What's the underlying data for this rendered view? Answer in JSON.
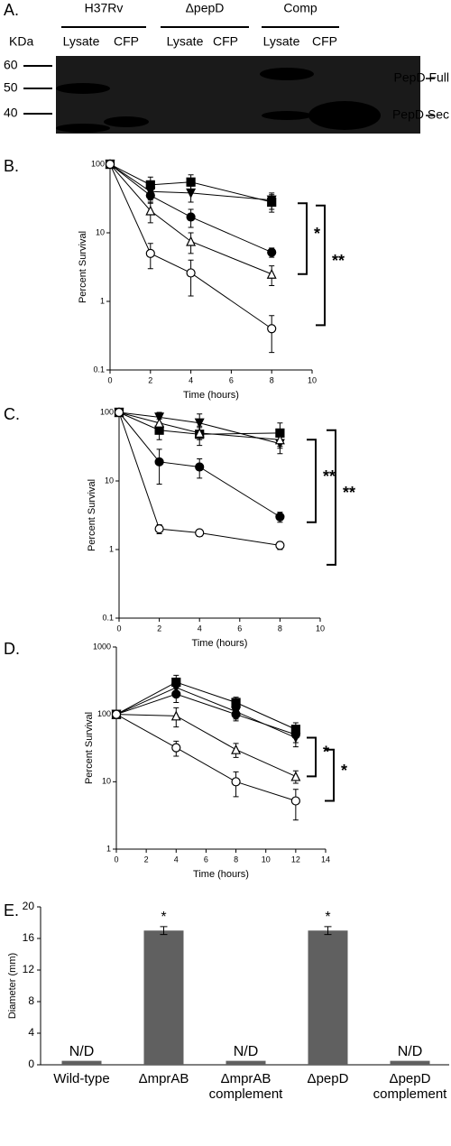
{
  "blot": {
    "panel_label": "A.",
    "unit": "KDa",
    "markers": [
      60,
      50,
      40
    ],
    "strains": [
      "H37Rv",
      "ΔpepD",
      "Comp"
    ],
    "lanes": [
      "Lysate",
      "CFP",
      "Lysate",
      "CFP",
      "Lysate",
      "CFP"
    ],
    "bands": [
      "PepD Full",
      "PepD Sec"
    ]
  },
  "chart_data": [
    {
      "type": "line",
      "panel_label": "B.",
      "y_label": "Percent Survival",
      "x_label": "Time (hours)",
      "x": [
        0,
        2,
        4,
        8
      ],
      "xlim": [
        0,
        10
      ],
      "xticks": [
        0,
        2,
        4,
        6,
        8,
        10
      ],
      "ylim": [
        0.1,
        100
      ],
      "yticks": [
        0.1,
        1,
        10,
        100
      ],
      "log_y": true,
      "series": [
        {
          "marker": "square",
          "filled": true,
          "color": "#000000",
          "values": [
            100,
            50,
            55,
            28
          ],
          "errors": [
            0,
            15,
            15,
            8
          ]
        },
        {
          "marker": "triangle-down",
          "filled": true,
          "color": "#000000",
          "values": [
            100,
            40,
            38,
            30
          ],
          "errors": [
            0,
            10,
            10,
            8
          ]
        },
        {
          "marker": "circle",
          "filled": true,
          "color": "#000000",
          "values": [
            100,
            35,
            17,
            5.2
          ],
          "errors": [
            0,
            8,
            5,
            0.8
          ]
        },
        {
          "marker": "triangle-up",
          "filled": false,
          "color": "#000000",
          "values": [
            100,
            21,
            7.5,
            2.5
          ],
          "errors": [
            0,
            7,
            2.5,
            0.8
          ]
        },
        {
          "marker": "circle",
          "filled": false,
          "color": "#000000",
          "values": [
            100,
            5,
            2.6,
            0.4
          ],
          "errors": [
            0,
            2,
            1.4,
            0.22
          ]
        }
      ],
      "annotations": [
        "*",
        "**"
      ]
    },
    {
      "type": "line",
      "panel_label": "C.",
      "y_label": "Percent Survival",
      "x_label": "Time (hours)",
      "x": [
        0,
        2,
        4,
        8
      ],
      "xlim": [
        0,
        10
      ],
      "xticks": [
        0,
        2,
        4,
        6,
        8,
        10
      ],
      "ylim": [
        0.1,
        100
      ],
      "yticks": [
        0.1,
        1,
        10,
        100
      ],
      "log_y": true,
      "series": [
        {
          "marker": "square",
          "filled": true,
          "color": "#000000",
          "values": [
            100,
            55,
            48,
            50
          ],
          "errors": [
            0,
            15,
            15,
            20
          ]
        },
        {
          "marker": "triangle-down",
          "filled": true,
          "color": "#000000",
          "values": [
            100,
            85,
            70,
            35
          ],
          "errors": [
            0,
            15,
            25,
            10
          ]
        },
        {
          "marker": "triangle-up",
          "filled": false,
          "color": "#000000",
          "values": [
            100,
            70,
            50,
            40
          ],
          "errors": [
            0,
            10,
            10,
            8
          ]
        },
        {
          "marker": "circle",
          "filled": true,
          "color": "#000000",
          "values": [
            100,
            19,
            16,
            3
          ],
          "errors": [
            0,
            10,
            5,
            0.5
          ]
        },
        {
          "marker": "circle",
          "filled": false,
          "color": "#000000",
          "values": [
            100,
            2,
            1.75,
            1.15
          ],
          "errors": [
            0,
            0.3,
            0.2,
            0.15
          ]
        }
      ],
      "annotations": [
        "**",
        "**"
      ]
    },
    {
      "type": "line",
      "panel_label": "D.",
      "y_label": "Percent Survival",
      "x_label": "Time (hours)",
      "x": [
        0,
        4,
        8,
        12
      ],
      "xlim": [
        0,
        14
      ],
      "xticks": [
        0,
        2,
        4,
        6,
        8,
        10,
        12,
        14
      ],
      "ylim": [
        1,
        1000
      ],
      "yticks": [
        1,
        10,
        100,
        1000
      ],
      "log_y": true,
      "series": [
        {
          "marker": "square",
          "filled": true,
          "color": "#000000",
          "values": [
            100,
            300,
            150,
            60
          ],
          "errors": [
            0,
            80,
            30,
            15
          ]
        },
        {
          "marker": "triangle-down",
          "filled": true,
          "color": "#000000",
          "values": [
            100,
            250,
            110,
            45
          ],
          "errors": [
            0,
            60,
            25,
            12
          ]
        },
        {
          "marker": "circle",
          "filled": true,
          "color": "#000000",
          "values": [
            100,
            200,
            100,
            50
          ],
          "errors": [
            0,
            50,
            20,
            12
          ]
        },
        {
          "marker": "triangle-up",
          "filled": false,
          "color": "#000000",
          "values": [
            100,
            95,
            30,
            12
          ],
          "errors": [
            0,
            30,
            7,
            2.5
          ]
        },
        {
          "marker": "circle",
          "filled": false,
          "color": "#000000",
          "values": [
            100,
            32,
            10,
            5.2
          ],
          "errors": [
            0,
            8,
            4,
            2.5
          ]
        }
      ],
      "annotations": [
        "*",
        "*"
      ]
    },
    {
      "type": "bar",
      "panel_label": "E.",
      "y_label": "Diameter (mm)",
      "categories": [
        [
          "Wild-type"
        ],
        [
          "ΔmprAB"
        ],
        [
          "ΔmprAB",
          "complement"
        ],
        [
          "ΔpepD"
        ],
        [
          "ΔpepD",
          "complement"
        ]
      ],
      "values": [
        0.5,
        17,
        0.5,
        17,
        0.5
      ],
      "errors": [
        0,
        0.5,
        0,
        0.5,
        0
      ],
      "value_notes": [
        "N/D",
        "*",
        "N/D",
        "*",
        "N/D"
      ],
      "color": "#606060",
      "ylim": [
        0,
        20
      ],
      "yticks": [
        0,
        4,
        8,
        12,
        16,
        20
      ]
    }
  ]
}
